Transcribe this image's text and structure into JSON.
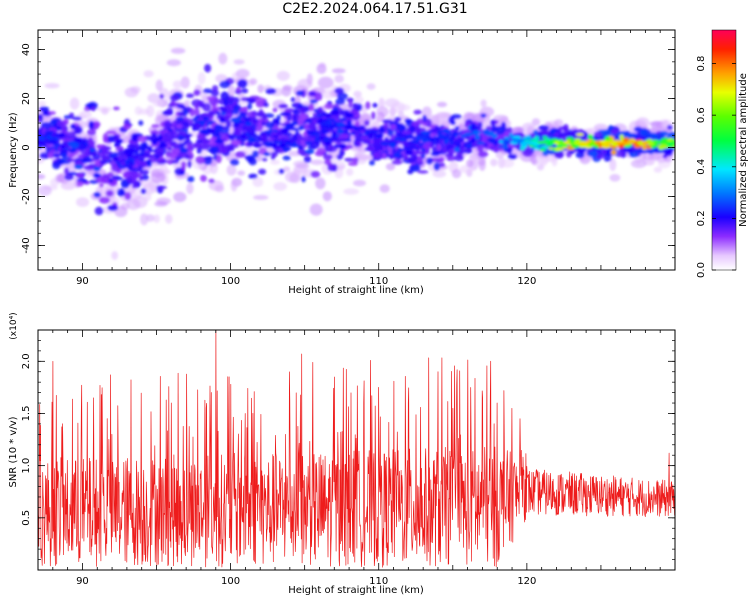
{
  "figure": {
    "title": "C2E2.2024.064.17.51.G31"
  },
  "chart_data": [
    {
      "type": "heatmap",
      "xlabel": "Height of straight line (km)",
      "ylabel": "Frequency (Hz)",
      "xlim": [
        87.0,
        130.0
      ],
      "ylim": [
        -50,
        48
      ],
      "xticks": [
        "90",
        "100",
        "110",
        "120"
      ],
      "xtick_values": [
        90,
        100,
        110,
        120
      ],
      "yticks": [
        "40",
        "20",
        "0",
        "-20",
        "-40"
      ],
      "ytick_values": [
        40,
        20,
        0,
        -20,
        -40
      ],
      "colorbar": {
        "label": "Normalized spectral amplitude",
        "range": [
          0.0,
          0.93
        ],
        "ticks": [
          "0.0",
          "0.2",
          "0.4",
          "0.6",
          "0.8"
        ],
        "tick_values": [
          0.0,
          0.2,
          0.4,
          0.6,
          0.8
        ],
        "colormap": "rainbow"
      },
      "band": [
        {
          "x": 88,
          "center": 4,
          "width": 18,
          "amp": 0.22
        },
        {
          "x": 90,
          "center": -2,
          "width": 22,
          "amp": 0.24
        },
        {
          "x": 92,
          "center": -6,
          "width": 26,
          "amp": 0.2
        },
        {
          "x": 94,
          "center": -4,
          "width": 24,
          "amp": 0.2
        },
        {
          "x": 96,
          "center": 4,
          "width": 24,
          "amp": 0.2
        },
        {
          "x": 98,
          "center": 8,
          "width": 26,
          "amp": 0.21
        },
        {
          "x": 100,
          "center": 10,
          "width": 26,
          "amp": 0.22
        },
        {
          "x": 102,
          "center": 6,
          "width": 24,
          "amp": 0.21
        },
        {
          "x": 104,
          "center": 6,
          "width": 22,
          "amp": 0.21
        },
        {
          "x": 106,
          "center": 8,
          "width": 22,
          "amp": 0.22
        },
        {
          "x": 108,
          "center": 8,
          "width": 20,
          "amp": 0.22
        },
        {
          "x": 110,
          "center": 4,
          "width": 18,
          "amp": 0.21
        },
        {
          "x": 112,
          "center": 2,
          "width": 16,
          "amp": 0.21
        },
        {
          "x": 114,
          "center": 4,
          "width": 14,
          "amp": 0.23
        },
        {
          "x": 116,
          "center": 4,
          "width": 12,
          "amp": 0.25
        },
        {
          "x": 118,
          "center": 4,
          "width": 10,
          "amp": 0.3
        },
        {
          "x": 120,
          "center": 2,
          "width": 8,
          "amp": 0.4
        },
        {
          "x": 122,
          "center": 2,
          "width": 8,
          "amp": 0.62
        },
        {
          "x": 124,
          "center": 2,
          "width": 8,
          "amp": 0.7
        },
        {
          "x": 126,
          "center": 2,
          "width": 8,
          "amp": 0.72
        },
        {
          "x": 128,
          "center": 2,
          "width": 8,
          "amp": 0.75
        },
        {
          "x": 130,
          "center": 2,
          "width": 8,
          "amp": 0.55
        }
      ]
    },
    {
      "type": "line",
      "xlabel": "Height of straight line (km)",
      "ylabel": "SNR (10 * v/v)",
      "yscale_label": "(x10⁴)",
      "xlim": [
        87.0,
        130.0
      ],
      "ylim": [
        0.0,
        2.3
      ],
      "xticks": [
        "90",
        "100",
        "110",
        "120"
      ],
      "xtick_values": [
        90,
        100,
        110,
        120
      ],
      "yticks": [
        "0.5",
        "1.0",
        "1.5",
        "2.0"
      ],
      "ytick_values": [
        0.5,
        1.0,
        1.5,
        2.0
      ],
      "color": "#ee1c1c",
      "peaks": [
        {
          "x": 88.0,
          "y": 2.0
        },
        {
          "x": 99.0,
          "y": 2.3
        },
        {
          "x": 104.8,
          "y": 2.07
        },
        {
          "x": 107.0,
          "y": 1.85
        },
        {
          "x": 110.0,
          "y": 1.75
        },
        {
          "x": 114.0,
          "y": 1.9
        },
        {
          "x": 117.0,
          "y": 1.65
        },
        {
          "x": 96.0,
          "y": 1.6
        },
        {
          "x": 92.0,
          "y": 1.3
        },
        {
          "x": 101.0,
          "y": 1.5
        },
        {
          "x": 109.0,
          "y": 1.6
        },
        {
          "x": 112.0,
          "y": 1.6
        },
        {
          "x": 115.0,
          "y": 1.55
        },
        {
          "x": 118.0,
          "y": 1.6
        },
        {
          "x": 119.0,
          "y": 1.55
        },
        {
          "x": 129.6,
          "y": 1.12
        }
      ],
      "envelope": [
        {
          "x": 87,
          "mean": 0.5,
          "spread": 0.8
        },
        {
          "x": 118,
          "mean": 0.55,
          "spread": 0.9
        },
        {
          "x": 120,
          "mean": 0.75,
          "spread": 0.45
        },
        {
          "x": 130,
          "mean": 0.68,
          "spread": 0.35
        }
      ]
    }
  ]
}
